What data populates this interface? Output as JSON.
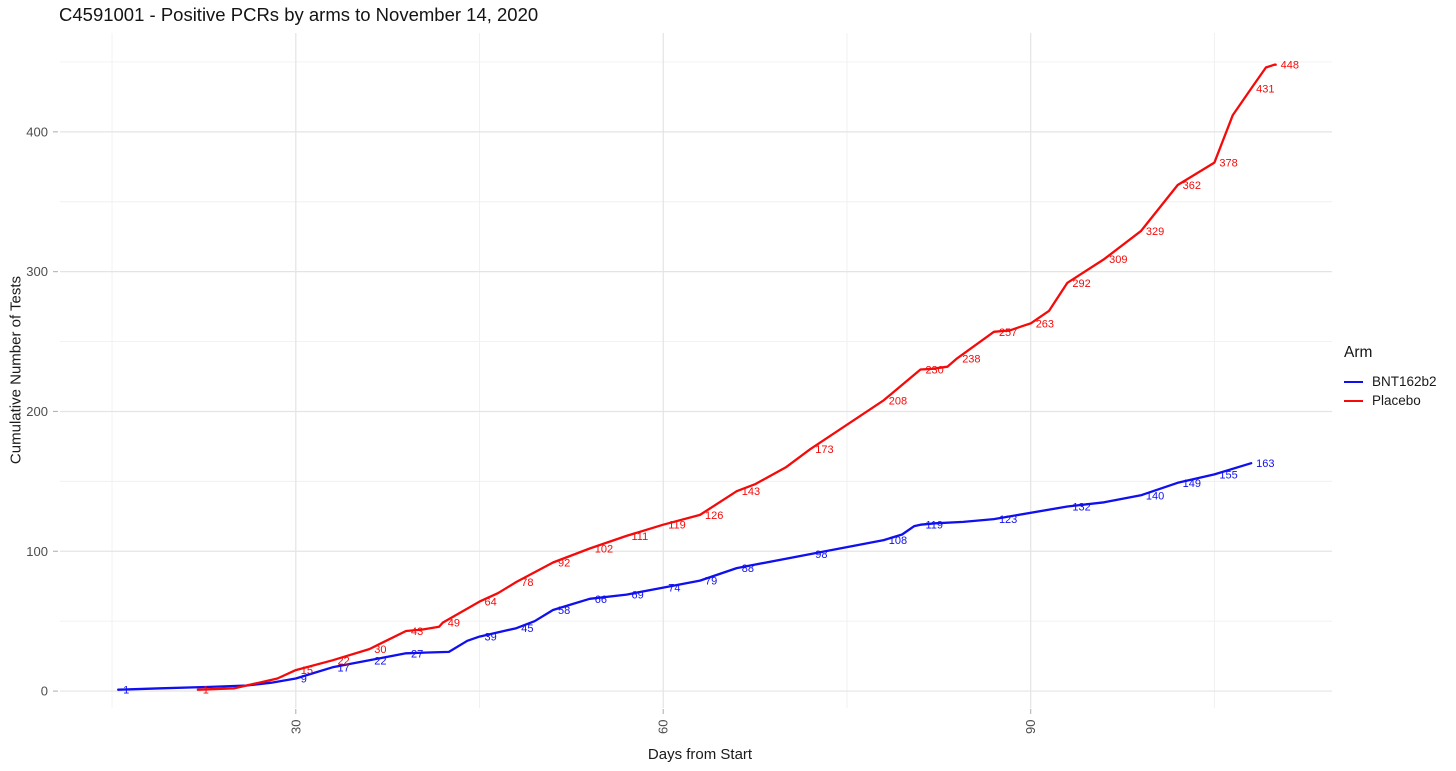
{
  "page": {
    "background": "#ffffff"
  },
  "chart_data": {
    "type": "line",
    "title": "C4591001 - Positive PCRs by arms to November 14, 2020",
    "xlabel": "Days from Start",
    "ylabel": "Cumulative Number of Tests",
    "x_ticks": [
      30,
      60,
      90
    ],
    "x_minor_gridlines": [
      15,
      45,
      75,
      105
    ],
    "y_ticks": [
      0,
      100,
      200,
      300,
      400
    ],
    "y_minor_gridlines": [
      50,
      150,
      250,
      350,
      450
    ],
    "xlim": [
      10.75,
      114.6
    ],
    "ylim": [
      -12.1,
      470.7
    ],
    "grid": "on",
    "x_tick_label_angle_deg": 90,
    "legend": {
      "title": "Arm",
      "position": "right"
    },
    "series": [
      {
        "name": "BNT162b2",
        "color": "#0F0FEF",
        "days": [
          15.5,
          30,
          33,
          36,
          39,
          45,
          48,
          51,
          54,
          57,
          60,
          63,
          66,
          72,
          78,
          81,
          87,
          93,
          99,
          102,
          105,
          108
        ],
        "values": [
          1,
          9,
          17,
          22,
          27,
          39,
          45,
          58,
          66,
          69,
          74,
          79,
          88,
          98,
          108,
          119,
          123,
          132,
          140,
          149,
          155,
          163
        ],
        "shape_points_estimated": [
          [
            19,
            2
          ],
          [
            23,
            3
          ],
          [
            26,
            4
          ],
          [
            28,
            6
          ],
          [
            31.5,
            13
          ],
          [
            40.5,
            27.5
          ],
          [
            42.5,
            28
          ],
          [
            44,
            36
          ],
          [
            49.5,
            50
          ],
          [
            52.5,
            62
          ],
          [
            79.5,
            112
          ],
          [
            80.5,
            118
          ],
          [
            82.2,
            120
          ],
          [
            84.5,
            121
          ],
          [
            96,
            135
          ]
        ]
      },
      {
        "name": "Placebo",
        "color": "#F50A0A",
        "days": [
          22,
          30,
          33,
          36,
          39,
          42,
          45,
          48,
          51,
          54,
          57,
          60,
          63,
          66,
          72,
          78,
          81,
          84,
          87,
          90,
          93,
          96,
          99,
          102,
          105,
          108,
          110
        ],
        "values": [
          1,
          15,
          22,
          30,
          43,
          49,
          64,
          78,
          92,
          102,
          111,
          119,
          126,
          143,
          173,
          208,
          230,
          238,
          257,
          263,
          292,
          309,
          329,
          362,
          378,
          431,
          448
        ],
        "shape_points_estimated": [
          [
            25,
            2
          ],
          [
            27,
            6
          ],
          [
            28.5,
            9
          ],
          [
            40.3,
            44
          ],
          [
            41.7,
            46
          ],
          [
            46.5,
            70
          ],
          [
            67.5,
            148
          ],
          [
            70,
            160
          ],
          [
            82,
            230.5
          ],
          [
            83.2,
            232
          ],
          [
            88.3,
            258
          ],
          [
            89.3,
            261
          ],
          [
            91.5,
            272
          ],
          [
            106.5,
            412
          ],
          [
            109.2,
            446
          ],
          [
            109.9,
            448
          ]
        ]
      }
    ],
    "style_colors": {
      "grid_major": "#e4e4e4",
      "grid_minor": "#f0f0f0",
      "tick_mark": "#b3b3b3",
      "axis_text": "#4d4d4d",
      "title_text": "#141414"
    }
  }
}
